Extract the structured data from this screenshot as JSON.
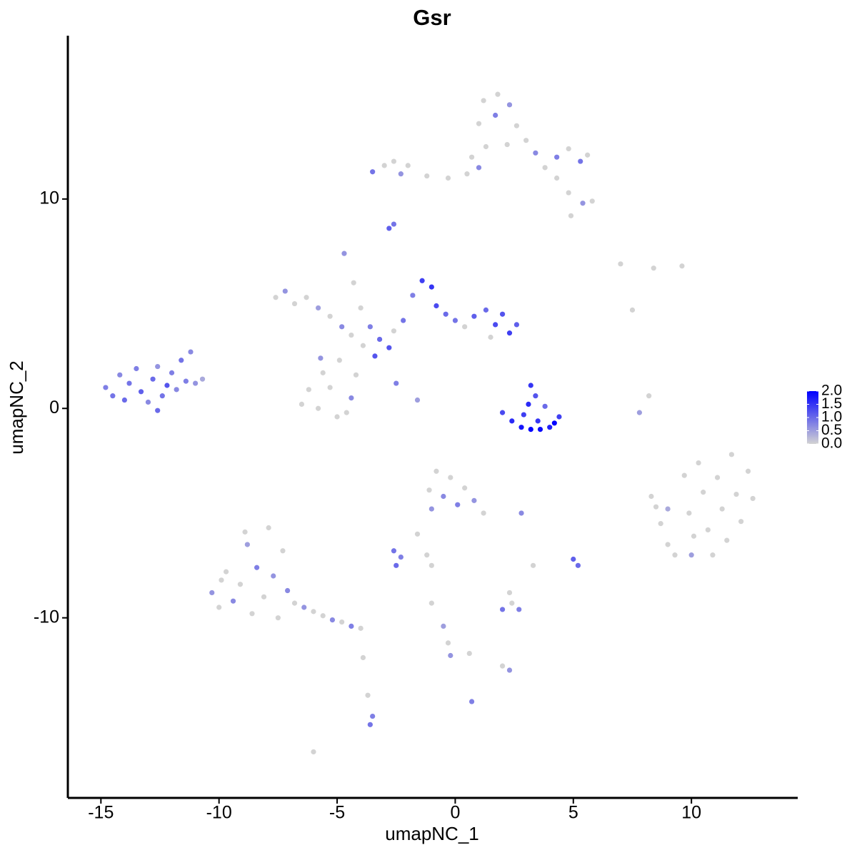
{
  "chart_data": {
    "type": "scatter",
    "title": "Gsr",
    "x_label": "umapNC_1",
    "y_label": "umapNC_2",
    "xlim": [
      -16.4,
      14.5
    ],
    "ylim": [
      -18.6,
      17.8
    ],
    "xticks": [
      -15,
      -10,
      -5,
      0,
      5,
      10
    ],
    "yticks": [
      -10,
      0,
      10
    ],
    "grid": false,
    "colors": [
      "#d3d3d3",
      "#0000ff"
    ],
    "clim": [
      0,
      2
    ],
    "cticks": [
      {
        "value": 0,
        "label": "0.0"
      },
      {
        "value": 0.5,
        "label": "0.5"
      },
      {
        "value": 1,
        "label": "1.0"
      },
      {
        "value": 1.5,
        "label": "1.5"
      },
      {
        "value": 2,
        "label": "2.0"
      }
    ],
    "x": [
      -14.8,
      -14.5,
      -14.2,
      -14.0,
      -13.8,
      -13.5,
      -13.3,
      -13.0,
      -12.8,
      -12.6,
      -12.4,
      -12.2,
      -12.0,
      -11.8,
      -11.6,
      -11.4,
      -11.2,
      -11.0,
      -10.7,
      -12.6,
      -7.6,
      -7.2,
      -6.8,
      -6.3,
      -5.8,
      -5.3,
      -4.8,
      -4.4,
      -4.7,
      -4.3,
      -4.0,
      -3.6,
      -3.2,
      -2.8,
      -2.6,
      -2.2,
      -1.8,
      -1.4,
      -1.0,
      -0.8,
      -0.4,
      0.0,
      0.4,
      0.8,
      1.3,
      1.7,
      2.0,
      2.3,
      2.6,
      1.5,
      -3.4,
      -2.5,
      -1.6,
      -4.9,
      -5.6,
      -6.2,
      -5.8,
      -5.0,
      -4.4,
      -4.2,
      -6.5,
      -5.3,
      -4.6,
      -5.7,
      -3.9,
      -3.0,
      -2.6,
      -2.3,
      -3.5,
      -2.0,
      -1.2,
      -0.3,
      0.5,
      1.0,
      1.3,
      1.0,
      1.2,
      1.8,
      2.3,
      1.7,
      2.6,
      2.2,
      3.0,
      3.4,
      3.8,
      4.3,
      4.8,
      5.3,
      5.6,
      4.3,
      4.8,
      5.4,
      5.8,
      4.9,
      0.7,
      -2.8,
      -2.6,
      2.0,
      2.4,
      2.8,
      3.2,
      3.6,
      4.0,
      4.4,
      3.2,
      3.4,
      3.1,
      3.8,
      2.9,
      3.5,
      4.2,
      8.3,
      8.7,
      9.0,
      9.3,
      9.7,
      9.9,
      10.1,
      10.3,
      10.5,
      10.7,
      10.9,
      11.1,
      11.3,
      11.5,
      11.7,
      11.9,
      12.1,
      12.4,
      12.6,
      10.0,
      9.0,
      8.5,
      7.0,
      7.5,
      8.4,
      9.6,
      8.2,
      7.8,
      -10.3,
      -10.0,
      -9.7,
      -9.4,
      -9.1,
      -8.8,
      -8.6,
      -8.4,
      -8.1,
      -7.9,
      -7.7,
      -7.5,
      -7.3,
      -7.1,
      -6.8,
      -6.4,
      -6.0,
      -5.6,
      -5.2,
      -4.8,
      -4.4,
      -4.0,
      -8.9,
      -9.9,
      -1.1,
      -0.8,
      -0.5,
      -0.2,
      0.1,
      0.4,
      0.8,
      1.2,
      -1.0,
      -1.6,
      -2.6,
      -2.3,
      -2.5,
      5.0,
      5.2,
      2.0,
      2.4,
      2.7,
      2.3,
      -3.6,
      -3.5,
      -3.7,
      0.7,
      -0.3,
      -0.2,
      0.6,
      2.3,
      2.0,
      -6.0,
      -3.9,
      -1.0,
      -0.5,
      3.3,
      2.8,
      -1.2,
      -1.0
    ],
    "y": [
      1.0,
      0.6,
      1.6,
      0.4,
      1.2,
      1.9,
      0.8,
      0.3,
      1.4,
      2.0,
      0.6,
      1.1,
      1.7,
      0.9,
      2.3,
      1.3,
      2.7,
      1.2,
      1.4,
      -0.1,
      5.3,
      5.6,
      5.0,
      5.3,
      4.8,
      4.4,
      3.9,
      3.5,
      7.4,
      6.0,
      4.8,
      3.9,
      3.3,
      2.9,
      3.7,
      4.2,
      5.4,
      6.1,
      5.8,
      4.9,
      4.5,
      4.2,
      3.9,
      4.4,
      4.7,
      4.0,
      4.5,
      3.6,
      4.0,
      3.4,
      2.5,
      1.2,
      0.4,
      2.3,
      1.7,
      0.9,
      0.0,
      -0.4,
      0.5,
      1.6,
      0.2,
      1.0,
      -0.2,
      2.4,
      3.0,
      11.6,
      11.8,
      11.2,
      11.3,
      11.6,
      11.1,
      11.0,
      11.2,
      11.5,
      12.5,
      13.6,
      14.7,
      15.0,
      14.5,
      14.0,
      13.5,
      12.6,
      12.8,
      12.2,
      11.5,
      12.0,
      12.4,
      11.8,
      12.1,
      11.0,
      10.3,
      9.8,
      9.9,
      9.2,
      12.0,
      8.6,
      8.8,
      -0.2,
      -0.6,
      -0.9,
      -1.0,
      -1.0,
      -0.9,
      -0.4,
      1.1,
      0.6,
      0.2,
      0.1,
      -0.3,
      -0.6,
      -0.7,
      -4.2,
      -5.5,
      -6.5,
      -7.0,
      -3.2,
      -5.0,
      -6.1,
      -2.6,
      -4.0,
      -5.8,
      -7.0,
      -3.3,
      -4.8,
      -6.3,
      -2.2,
      -4.1,
      -5.4,
      -3.0,
      -4.3,
      -7.0,
      -4.8,
      -4.7,
      6.9,
      4.7,
      6.7,
      6.8,
      0.6,
      -0.2,
      -8.8,
      -9.5,
      -7.8,
      -9.2,
      -8.4,
      -6.5,
      -9.8,
      -7.6,
      -9.0,
      -5.7,
      -8.0,
      -10.0,
      -6.8,
      -8.7,
      -9.3,
      -9.5,
      -9.7,
      -9.9,
      -10.1,
      -10.2,
      -10.4,
      -10.5,
      -5.9,
      -8.2,
      -3.9,
      -3.0,
      -4.2,
      -3.3,
      -4.6,
      -3.8,
      -4.4,
      -5.0,
      -4.8,
      -6.0,
      -6.8,
      -7.1,
      -7.5,
      -7.2,
      -7.5,
      -9.6,
      -9.3,
      -9.6,
      -8.8,
      -15.1,
      -14.7,
      -13.7,
      -14.0,
      -11.2,
      -11.8,
      -11.7,
      -12.5,
      -12.3,
      -16.4,
      -11.9,
      -9.3,
      -10.4,
      -7.5,
      -5.0,
      -7.0,
      -7.5
    ],
    "expression": [
      0.8,
      0.9,
      0.7,
      1.0,
      0.9,
      0.8,
      1.1,
      0.7,
      1.0,
      0.6,
      0.9,
      1.2,
      0.8,
      0.7,
      0.9,
      0.8,
      0.7,
      0.6,
      0.4,
      1.0,
      0,
      0.6,
      0,
      0,
      0.5,
      0,
      0.7,
      0,
      0.6,
      0,
      0,
      0.8,
      1.0,
      1.2,
      0,
      0.9,
      0.8,
      1.4,
      1.5,
      1.3,
      1.0,
      0.9,
      0,
      1.1,
      1.0,
      1.3,
      1.2,
      1.4,
      1.1,
      0,
      1.2,
      0.8,
      0.5,
      0,
      0,
      0,
      0,
      0,
      0.7,
      0,
      0,
      0,
      0,
      0.6,
      0,
      0,
      0,
      0.6,
      0.9,
      0,
      0,
      0,
      0,
      0.7,
      0,
      0,
      0,
      0,
      0.6,
      0.8,
      0,
      0,
      0,
      0.7,
      0,
      0.8,
      0,
      0.9,
      0,
      0,
      0,
      0.6,
      0,
      0,
      0,
      1.1,
      0.9,
      1.3,
      1.6,
      1.8,
      2.0,
      1.9,
      1.7,
      1.4,
      1.5,
      1.2,
      1.6,
      1.0,
      1.4,
      1.5,
      2.0,
      0,
      0,
      0,
      0,
      0,
      0,
      0,
      0,
      0,
      0,
      0,
      0,
      0,
      0,
      0,
      0,
      0,
      0,
      0,
      0.5,
      0.4,
      0,
      0,
      0,
      0,
      0,
      0,
      0.5,
      0.6,
      0,
      0,
      0.7,
      0,
      0.5,
      0,
      0.8,
      0,
      0,
      0.6,
      0,
      0,
      0.7,
      0,
      0.6,
      0,
      0,
      0.7,
      0,
      0.8,
      0,
      0,
      0,
      0,
      0,
      0.7,
      0,
      0.8,
      0,
      0.6,
      0,
      0.6,
      0,
      0.9,
      0.8,
      1.0,
      1.1,
      1.0,
      0.9,
      0,
      0.8,
      0,
      0.9,
      0.8,
      0,
      0.8,
      0,
      0.6,
      0,
      0.6,
      0,
      0,
      0,
      0,
      0.5,
      0,
      0.7,
      0,
      0
    ]
  }
}
